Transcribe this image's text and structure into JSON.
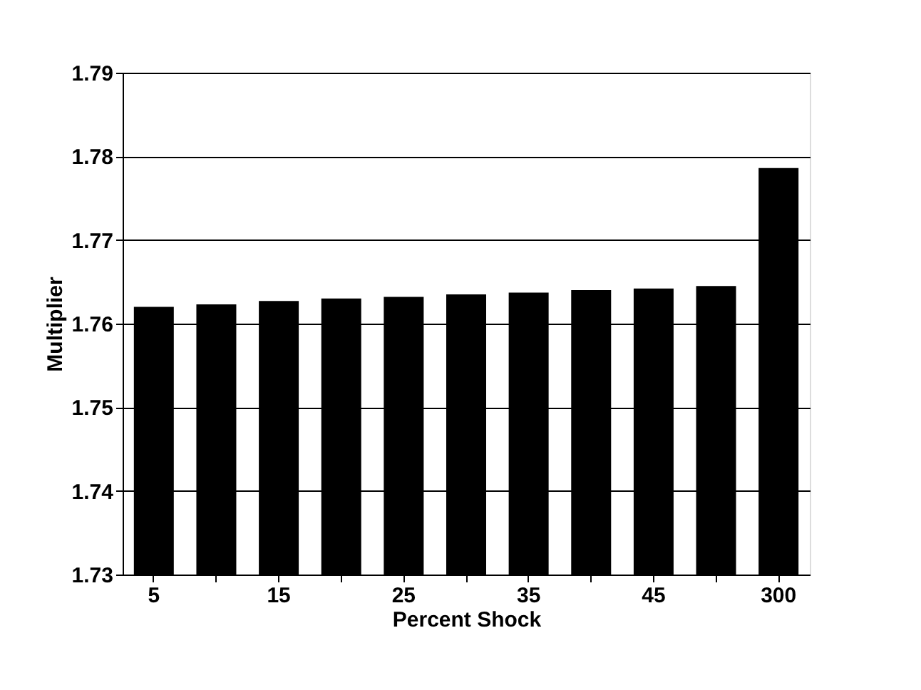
{
  "chart_data": {
    "type": "bar",
    "xlabel": "Percent Shock",
    "ylabel": "Multiplier",
    "categories": [
      "5",
      null,
      "15",
      null,
      "25",
      null,
      "35",
      null,
      "45",
      null,
      "300"
    ],
    "values": [
      1.762,
      1.7623,
      1.7627,
      1.763,
      1.7632,
      1.7635,
      1.7637,
      1.764,
      1.7642,
      1.7645,
      1.7786
    ],
    "color": "#000000",
    "ylim": [
      1.73,
      1.79
    ],
    "yticks": [
      1.73,
      1.74,
      1.75,
      1.76,
      1.77,
      1.78,
      1.79
    ],
    "grid": "y"
  }
}
